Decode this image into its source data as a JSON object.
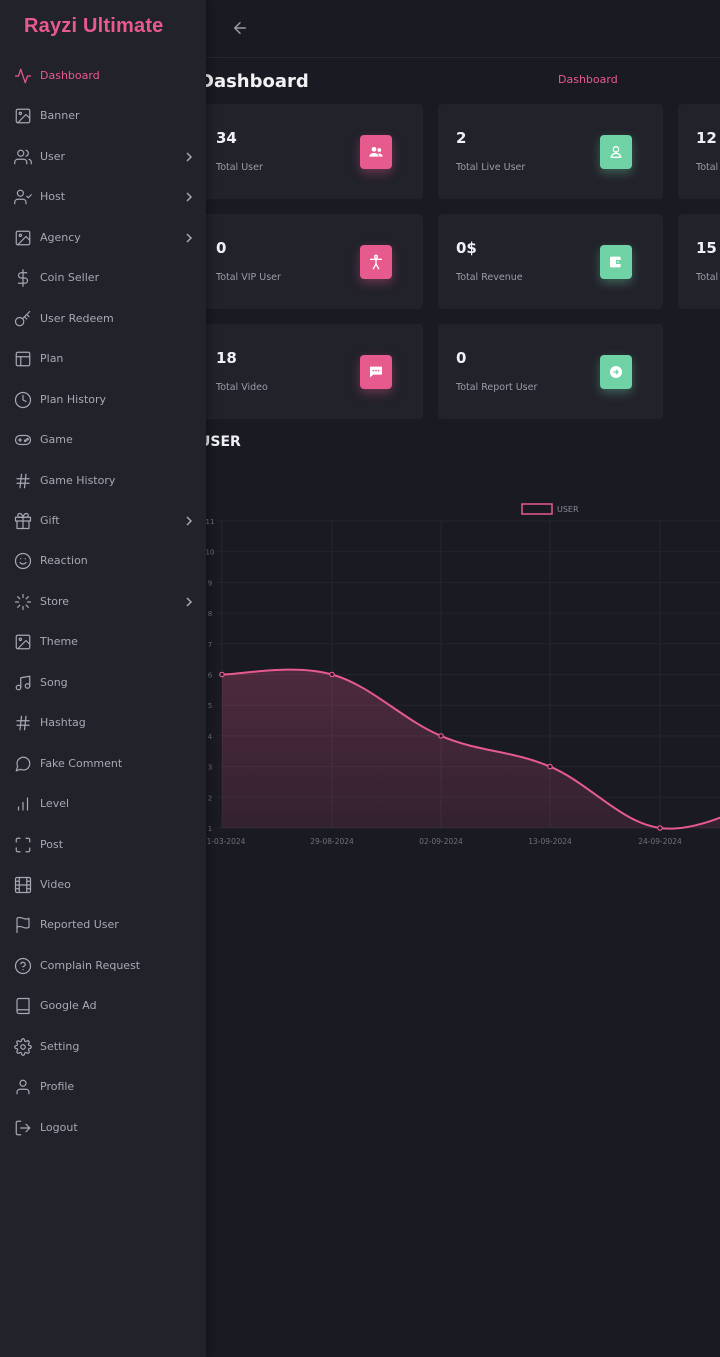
{
  "brand": "Rayzi Ultimate",
  "page_title": "Dashboard",
  "breadcrumb": "Dashboard",
  "colors": {
    "accent": "#e75a8e",
    "green": "#6fd3a5",
    "bg": "#1a1a22",
    "panel": "#22222b"
  },
  "sidebar": {
    "items": [
      {
        "label": "Dashboard",
        "icon": "activity-icon",
        "active": true,
        "chevron": false
      },
      {
        "label": "Banner",
        "icon": "image-icon",
        "chevron": false
      },
      {
        "label": "User",
        "icon": "users-icon",
        "chevron": true
      },
      {
        "label": "Host",
        "icon": "user-check-icon",
        "chevron": true
      },
      {
        "label": "Agency",
        "icon": "image-icon",
        "chevron": true
      },
      {
        "label": "Coin Seller",
        "icon": "dollar-icon",
        "chevron": false
      },
      {
        "label": "User Redeem",
        "icon": "key-icon",
        "chevron": false
      },
      {
        "label": "Plan",
        "icon": "layout-icon",
        "chevron": false
      },
      {
        "label": "Plan History",
        "icon": "clock-icon",
        "chevron": false
      },
      {
        "label": "Game",
        "icon": "gamepad-icon",
        "chevron": false
      },
      {
        "label": "Game History",
        "icon": "hash-icon",
        "chevron": false
      },
      {
        "label": "Gift",
        "icon": "gift-icon",
        "chevron": true
      },
      {
        "label": "Reaction",
        "icon": "smile-icon",
        "chevron": false
      },
      {
        "label": "Store",
        "icon": "loader-icon",
        "chevron": true
      },
      {
        "label": "Theme",
        "icon": "image-icon",
        "chevron": false
      },
      {
        "label": "Song",
        "icon": "music-icon",
        "chevron": false
      },
      {
        "label": "Hashtag",
        "icon": "hash-icon",
        "chevron": false
      },
      {
        "label": "Fake Comment",
        "icon": "message-circle-icon",
        "chevron": false
      },
      {
        "label": "Level",
        "icon": "bar-chart-icon",
        "chevron": false
      },
      {
        "label": "Post",
        "icon": "maximize-icon",
        "chevron": false
      },
      {
        "label": "Video",
        "icon": "film-icon",
        "chevron": false
      },
      {
        "label": "Reported User",
        "icon": "flag-icon",
        "chevron": false
      },
      {
        "label": "Complain Request",
        "icon": "help-circle-icon",
        "chevron": false
      },
      {
        "label": "Google Ad",
        "icon": "book-icon",
        "chevron": false
      },
      {
        "label": "Setting",
        "icon": "settings-icon",
        "chevron": false
      },
      {
        "label": "Profile",
        "icon": "user-icon",
        "chevron": false
      },
      {
        "label": "Logout",
        "icon": "log-out-icon",
        "chevron": false
      }
    ]
  },
  "cards": [
    {
      "value": "34",
      "label": "Total User",
      "icon": "users-icon",
      "color": "pink"
    },
    {
      "value": "2",
      "label": "Total Live User",
      "icon": "user-icon",
      "color": "green"
    },
    {
      "value": "12",
      "label": "Total",
      "icon": "",
      "color": ""
    },
    {
      "value": "0",
      "label": "Total VIP User",
      "icon": "person-icon",
      "color": "pink"
    },
    {
      "value": "0$",
      "label": "Total Revenue",
      "icon": "wallet-icon",
      "color": "green"
    },
    {
      "value": "15",
      "label": "Total",
      "icon": "",
      "color": ""
    },
    {
      "value": "18",
      "label": "Total Video",
      "icon": "message-square-icon",
      "color": "pink"
    },
    {
      "value": "0",
      "label": "Total Report User",
      "icon": "report-icon",
      "color": "green"
    }
  ],
  "section_title": "USER",
  "chart_data": {
    "type": "area",
    "series": [
      {
        "name": "USER",
        "values": [
          6,
          6,
          4,
          3,
          1,
          2
        ]
      }
    ],
    "x": [
      "1-03-2024",
      "29-08-2024",
      "02-09-2024",
      "13-09-2024",
      "24-09-2024",
      ""
    ],
    "ylim": [
      1,
      11
    ],
    "yticks": [
      "1",
      "2",
      "3",
      "4",
      "5",
      "6",
      "7",
      "8",
      "9",
      "10",
      "11"
    ],
    "legend": "top-center",
    "grid": true
  }
}
